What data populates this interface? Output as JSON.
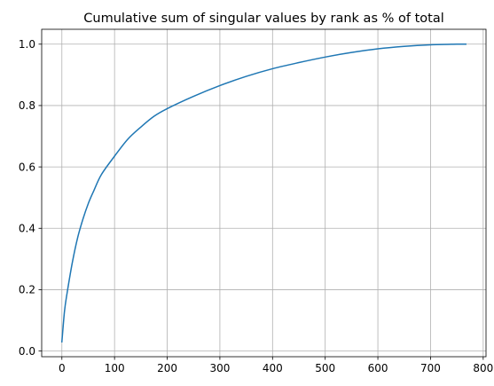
{
  "chart_data": {
    "type": "line",
    "title": "Cumulative sum of singular values by rank as % of total",
    "xlabel": "",
    "ylabel": "",
    "xlim": [
      -38.35,
      805.35
    ],
    "ylim": [
      -0.0185,
      1.0485
    ],
    "x_ticks": [
      0,
      100,
      200,
      300,
      400,
      500,
      600,
      700,
      800
    ],
    "y_ticks": [
      0.0,
      0.2,
      0.4,
      0.6,
      0.8,
      1.0
    ],
    "x_tick_labels": [
      "0",
      "100",
      "200",
      "300",
      "400",
      "500",
      "600",
      "700",
      "800"
    ],
    "y_tick_labels": [
      "0.0",
      "0.2",
      "0.4",
      "0.6",
      "0.8",
      "1.0"
    ],
    "grid": true,
    "legend": "none",
    "series": [
      {
        "color": "#1f77b4",
        "x": [
          0,
          5,
          10,
          20,
          30,
          40,
          50,
          60,
          75,
          100,
          125,
          150,
          175,
          200,
          250,
          300,
          350,
          400,
          450,
          500,
          550,
          600,
          650,
          700,
          750,
          767
        ],
        "y": [
          0.03,
          0.13,
          0.19,
          0.29,
          0.37,
          0.43,
          0.48,
          0.52,
          0.575,
          0.635,
          0.69,
          0.73,
          0.765,
          0.79,
          0.83,
          0.865,
          0.895,
          0.92,
          0.94,
          0.958,
          0.973,
          0.985,
          0.993,
          0.998,
          1.0,
          1.0
        ]
      }
    ]
  }
}
